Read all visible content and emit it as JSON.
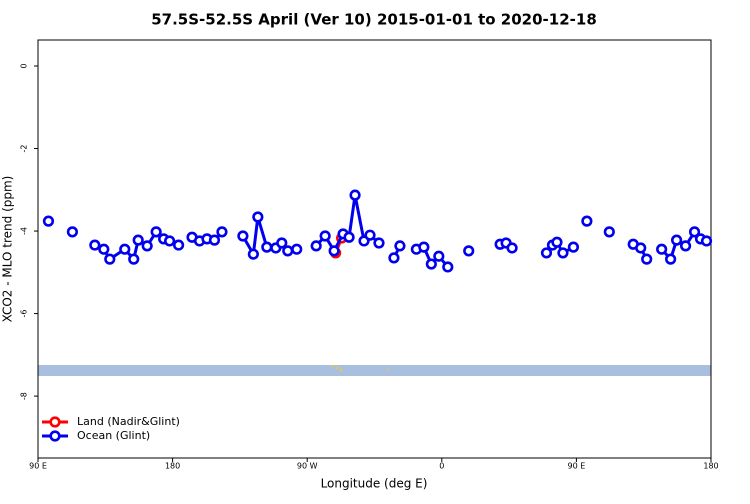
{
  "chart_data": {
    "type": "line",
    "title": "57.5S-52.5S April (Ver 10)   2015-01-01 to 2020-12-18",
    "x_label": "Longitude (deg E)",
    "y_label": "XCO2 - MLO trend (ppm)",
    "xlim": [
      90,
      540
    ],
    "xticks": [
      {
        "value": 90,
        "label": "90 E"
      },
      180,
      {
        "value": 270,
        "label": "90 W"
      },
      {
        "value": 360,
        "label": "0"
      },
      {
        "value": 450,
        "label": "90 E"
      },
      {
        "value": 540,
        "label": "180"
      }
    ],
    "ylim": [
      -9.5,
      0.63
    ],
    "yticks": [
      0,
      -2,
      -4,
      -6,
      -8
    ],
    "legend": "bottom-left",
    "series": [
      {
        "name": "Land (Nadir&Glint)",
        "color": "#ff0000",
        "x": [
          289,
          293
        ],
        "values": [
          -4.53,
          -4.17
        ]
      },
      {
        "name": "Ocean (Glint)",
        "color": "#0000ee",
        "x": [
          97,
          null,
          113,
          null,
          128,
          134,
          138,
          148,
          154,
          157,
          163,
          169,
          174,
          178,
          184,
          null,
          193,
          198,
          203,
          208,
          213,
          null,
          227,
          234,
          237,
          243,
          249,
          253,
          257,
          263,
          null,
          276,
          282,
          288,
          294,
          298,
          302,
          308,
          312,
          318,
          null,
          328,
          332,
          null,
          343,
          348,
          353,
          358,
          364,
          null,
          378,
          null,
          399,
          403,
          407,
          null,
          430,
          434,
          437,
          441,
          448,
          null,
          457,
          null,
          472,
          null,
          488,
          493,
          497,
          null,
          507,
          513,
          517,
          523,
          529,
          533,
          537
        ],
        "values": [
          -3.76,
          null,
          -4.02,
          null,
          -4.34,
          -4.44,
          -4.68,
          -4.44,
          -4.68,
          -4.22,
          -4.36,
          -4.02,
          -4.19,
          -4.24,
          -4.34,
          null,
          -4.15,
          -4.24,
          -4.19,
          -4.22,
          -4.02,
          null,
          -4.12,
          -4.56,
          -3.66,
          -4.39,
          -4.41,
          -4.29,
          -4.48,
          -4.44,
          null,
          -4.36,
          -4.12,
          -4.48,
          -4.07,
          -4.15,
          -3.13,
          -4.24,
          -4.1,
          -4.29,
          null,
          -4.65,
          -4.36,
          null,
          -4.44,
          -4.39,
          -4.8,
          -4.61,
          -4.87,
          null,
          -4.48,
          null,
          -4.32,
          -4.29,
          -4.41,
          null,
          -4.53,
          -4.34,
          -4.27,
          -4.53,
          -4.39,
          null,
          -3.76,
          null,
          -4.02,
          null,
          -4.32,
          -4.41,
          -4.68,
          null,
          -4.44,
          -4.68,
          -4.22,
          -4.36,
          -4.02,
          -4.19,
          -4.24
        ]
      }
    ]
  }
}
